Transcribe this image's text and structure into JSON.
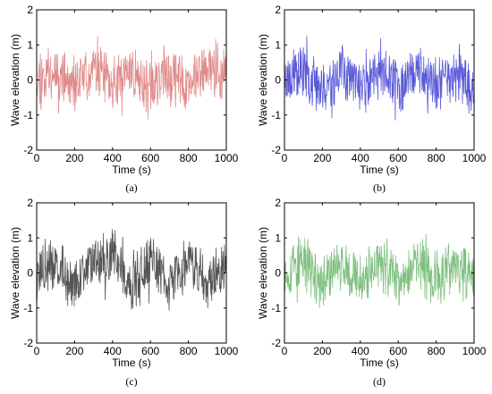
{
  "chart_data": [
    {
      "type": "line",
      "panel_label": "(a)",
      "xlabel": "Time (s)",
      "ylabel": "Wave elevation (m)",
      "xlim": [
        0,
        1000
      ],
      "ylim": [
        -2,
        2
      ],
      "xticks": [
        "0",
        "200",
        "400",
        "600",
        "800",
        "1000"
      ],
      "yticks": [
        "-2",
        "-1",
        "0",
        "1",
        "2"
      ],
      "grid": false,
      "color": "#e08b8b",
      "seed": 11,
      "series": [
        {
          "x": [
            0,
            100,
            200,
            300,
            400,
            500,
            600,
            700,
            800,
            900,
            1000
          ],
          "values": [
            0.1,
            0.8,
            -0.6,
            1.2,
            -0.7,
            0.9,
            -0.8,
            0.7,
            -0.6,
            1.1,
            0.2
          ]
        }
      ]
    },
    {
      "type": "line",
      "panel_label": "(b)",
      "xlabel": "Time (s)",
      "ylabel": "Wave elevation (m)",
      "xlim": [
        0,
        1000
      ],
      "ylim": [
        -2,
        2
      ],
      "xticks": [
        "0",
        "200",
        "400",
        "600",
        "800",
        "1000"
      ],
      "yticks": [
        "-2",
        "-1",
        "0",
        "1",
        "2"
      ],
      "grid": false,
      "color": "#5a5ad8",
      "seed": 23,
      "series": [
        {
          "x": [
            0,
            100,
            200,
            300,
            400,
            500,
            600,
            700,
            800,
            900,
            1000
          ],
          "values": [
            0.0,
            0.7,
            -0.9,
            0.8,
            -0.6,
            0.7,
            -0.7,
            0.9,
            -0.5,
            0.8,
            -1.0
          ]
        }
      ]
    },
    {
      "type": "line",
      "panel_label": "(c)",
      "xlabel": "Time (s)",
      "ylabel": "Wave elevation (m)",
      "xlim": [
        0,
        1000
      ],
      "ylim": [
        -2,
        2
      ],
      "xticks": [
        "0",
        "200",
        "400",
        "600",
        "800",
        "1000"
      ],
      "yticks": [
        "-2",
        "-1",
        "0",
        "1",
        "2"
      ],
      "grid": false,
      "color": "#555555",
      "seed": 37,
      "series": [
        {
          "x": [
            0,
            100,
            200,
            300,
            400,
            500,
            600,
            700,
            800,
            900,
            1000
          ],
          "values": [
            0.0,
            0.6,
            -1.1,
            0.9,
            1.25,
            -0.9,
            0.8,
            -0.8,
            0.9,
            -0.7,
            0.5
          ]
        }
      ]
    },
    {
      "type": "line",
      "panel_label": "(d)",
      "xlabel": "Time (s)",
      "ylabel": "Wave elevation (m)",
      "xlim": [
        0,
        1000
      ],
      "ylim": [
        -2,
        2
      ],
      "xticks": [
        "0",
        "200",
        "400",
        "600",
        "800",
        "1000"
      ],
      "yticks": [
        "-2",
        "-1",
        "0",
        "1",
        "2"
      ],
      "grid": false,
      "color": "#7fbf7f",
      "seed": 53,
      "series": [
        {
          "x": [
            0,
            100,
            200,
            300,
            400,
            500,
            600,
            700,
            800,
            900,
            1000
          ],
          "values": [
            0.0,
            0.8,
            -0.8,
            0.9,
            -0.7,
            1.0,
            -0.8,
            0.8,
            -0.6,
            0.7,
            -0.5
          ]
        }
      ]
    }
  ]
}
